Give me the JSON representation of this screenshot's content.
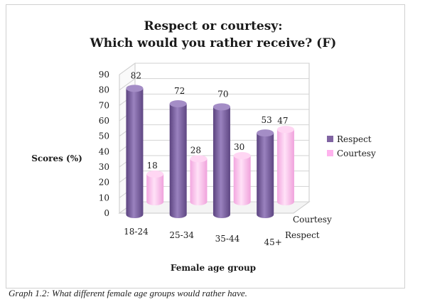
{
  "chart_data": {
    "type": "bar",
    "title_line1": "Respect or courtesy:",
    "title_line2": "Which would you rather receive? (F)",
    "xlabel": "Female age group",
    "ylabel": "Scores (%)",
    "ylim": [
      0,
      90
    ],
    "yticks": [
      "0",
      "10",
      "20",
      "30",
      "40",
      "50",
      "60",
      "70",
      "80",
      "90"
    ],
    "categories": [
      "18-24",
      "25-34",
      "35-44",
      "45+"
    ],
    "depth_labels": [
      "Courtesy",
      "Respect"
    ],
    "series": [
      {
        "name": "Respect",
        "values": [
          82,
          72,
          70,
          53
        ],
        "labels": [
          "82",
          "72",
          "70",
          "53"
        ],
        "color": "#8064a2"
      },
      {
        "name": "Courtesy",
        "values": [
          18,
          28,
          30,
          47
        ],
        "labels": [
          "18",
          "28",
          "30",
          "47"
        ],
        "color": "#ffb3ee"
      }
    ],
    "legend": "right",
    "grid": true
  },
  "caption": "Graph 1.2: What different female age groups would rather have."
}
